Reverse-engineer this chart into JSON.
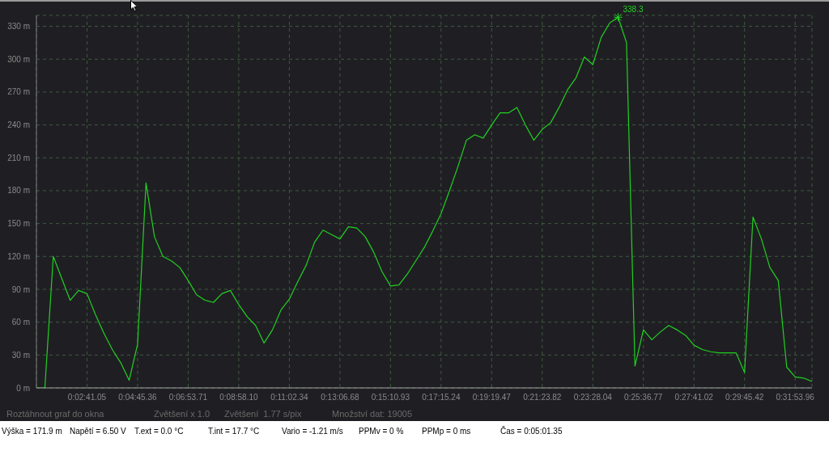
{
  "chart_data": {
    "type": "line",
    "grid": true,
    "ylim": [
      0,
      340
    ],
    "yticks": [
      {
        "value": 0,
        "label": "0 m"
      },
      {
        "value": 30,
        "label": "30 m"
      },
      {
        "value": 60,
        "label": "60 m"
      },
      {
        "value": 90,
        "label": "90 m"
      },
      {
        "value": 120,
        "label": "120 m"
      },
      {
        "value": 150,
        "label": "150 m"
      },
      {
        "value": 180,
        "label": "180 m"
      },
      {
        "value": 210,
        "label": "210 m"
      },
      {
        "value": 240,
        "label": "240 m"
      },
      {
        "value": 270,
        "label": "270 m"
      },
      {
        "value": 300,
        "label": "300 m"
      },
      {
        "value": 330,
        "label": "330 m"
      }
    ],
    "categories": [
      null,
      null,
      null,
      null,
      null,
      null,
      "0:02:41.05",
      null,
      null,
      null,
      null,
      null,
      "0:04:45.36",
      null,
      null,
      null,
      null,
      null,
      "0:06:53.71",
      null,
      null,
      null,
      null,
      null,
      "0:08:58.10",
      null,
      null,
      null,
      null,
      null,
      "0:11:02.34",
      null,
      null,
      null,
      null,
      null,
      "0:13:06.68",
      null,
      null,
      null,
      null,
      null,
      "0:15:10.93",
      null,
      null,
      null,
      null,
      null,
      "0:17:15.24",
      null,
      null,
      null,
      null,
      null,
      "0:19:19.47",
      null,
      null,
      null,
      null,
      null,
      "0:21:23.82",
      null,
      null,
      null,
      null,
      null,
      "0:23:28.04",
      null,
      null,
      null,
      null,
      null,
      "0:25:36.77",
      null,
      null,
      null,
      null,
      null,
      "0:27:41.02",
      null,
      null,
      null,
      null,
      null,
      "0:29:45.42",
      null,
      null,
      null,
      null,
      null,
      "0:31:53.96",
      null,
      null
    ],
    "series": [
      {
        "color": "#22d022",
        "values": [
          0,
          0,
          120,
          100,
          80,
          89,
          86,
          67,
          50,
          35,
          23,
          7,
          40,
          187,
          138,
          120,
          116,
          110,
          98,
          85,
          80,
          78,
          86,
          89,
          76,
          65,
          57,
          41,
          53,
          71,
          81,
          97,
          112,
          133,
          144,
          140,
          136,
          147,
          146,
          138,
          124,
          106,
          93,
          94,
          104,
          116,
          128,
          143,
          159,
          180,
          202,
          226,
          231,
          228,
          240,
          251,
          251,
          256,
          240,
          226,
          236,
          242,
          256,
          272,
          283,
          302,
          295,
          320,
          333,
          338.3,
          315,
          20,
          53,
          44,
          51,
          57,
          53,
          48,
          39,
          35,
          33,
          32,
          32,
          32,
          14,
          156,
          136,
          110,
          98,
          19,
          10,
          9,
          6
        ]
      }
    ],
    "annotations": [
      "338.3",
      "Roztáhnout graf do okna",
      "Zvětšení x 1.0",
      "Zvětšení  1.77 s/pix",
      "Množství dat: 19005",
      "Výška = 171.9 m",
      "Napětí = 6.50 V",
      "T.ext = 0.0 °C",
      "T.int = 17.7 °C",
      "Vario = -1.21 m/s",
      "PPMv = 0 %",
      "PPMp = 0 ms",
      "Čas = 0:05:01.35"
    ]
  }
}
